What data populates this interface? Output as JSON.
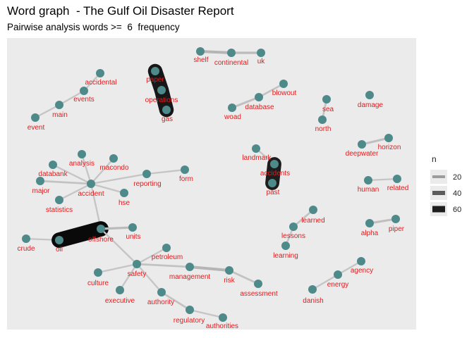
{
  "title": "Word graph  - The Gulf Oil Disaster Report",
  "subtitle": "Pairwise analysis words >=  6  frequency",
  "colors": {
    "panel": "#ebebeb",
    "node": "#4f8a8b",
    "label": "#e41a1c"
  },
  "chart_data": {
    "type": "network",
    "legend": {
      "title": "n",
      "values": [
        "20",
        "40",
        "60"
      ],
      "placement": "right"
    },
    "nodes": [
      "shelf",
      "continental",
      "uk",
      "paper",
      "operations",
      "gas",
      "accidental",
      "events",
      "main",
      "event",
      "blowout",
      "database",
      "woad",
      "sea",
      "north",
      "damage",
      "deepwater",
      "horizon",
      "landmark",
      "accidents",
      "past",
      "analysis",
      "macondo",
      "databank",
      "reporting",
      "form",
      "major",
      "accident",
      "hse",
      "statistics",
      "human",
      "related",
      "learned",
      "lessons",
      "learning",
      "alpha",
      "piper",
      "crude",
      "oil",
      "offshore",
      "units",
      "petroleum",
      "safety",
      "management",
      "risk",
      "assessment",
      "culture",
      "executive",
      "authority",
      "regulatory",
      "authorities",
      "agency",
      "energy",
      "danish"
    ],
    "edges": [
      {
        "from": "shelf",
        "to": "continental",
        "n": 12
      },
      {
        "from": "continental",
        "to": "uk",
        "n": 10
      },
      {
        "from": "paper",
        "to": "operations",
        "n": 62
      },
      {
        "from": "operations",
        "to": "gas",
        "n": 62
      },
      {
        "from": "accidental",
        "to": "events",
        "n": 7
      },
      {
        "from": "events",
        "to": "main",
        "n": 7
      },
      {
        "from": "main",
        "to": "event",
        "n": 7
      },
      {
        "from": "blowout",
        "to": "database",
        "n": 8
      },
      {
        "from": "database",
        "to": "woad",
        "n": 9
      },
      {
        "from": "sea",
        "to": "north",
        "n": 8
      },
      {
        "from": "deepwater",
        "to": "horizon",
        "n": 9
      },
      {
        "from": "landmark",
        "to": "accidents",
        "n": 7
      },
      {
        "from": "accidents",
        "to": "past",
        "n": 60
      },
      {
        "from": "analysis",
        "to": "accident",
        "n": 7
      },
      {
        "from": "macondo",
        "to": "accident",
        "n": 7
      },
      {
        "from": "databank",
        "to": "accident",
        "n": 7
      },
      {
        "from": "reporting",
        "to": "accident",
        "n": 7
      },
      {
        "from": "reporting",
        "to": "form",
        "n": 7
      },
      {
        "from": "major",
        "to": "accident",
        "n": 8
      },
      {
        "from": "accident",
        "to": "hse",
        "n": 7
      },
      {
        "from": "statistics",
        "to": "accident",
        "n": 7
      },
      {
        "from": "accident",
        "to": "offshore",
        "n": 7
      },
      {
        "from": "human",
        "to": "related",
        "n": 7
      },
      {
        "from": "learned",
        "to": "lessons",
        "n": 8
      },
      {
        "from": "lessons",
        "to": "learning",
        "n": 7
      },
      {
        "from": "alpha",
        "to": "piper",
        "n": 9
      },
      {
        "from": "crude",
        "to": "oil",
        "n": 7
      },
      {
        "from": "oil",
        "to": "offshore",
        "n": 66
      },
      {
        "from": "offshore",
        "to": "units",
        "n": 10
      },
      {
        "from": "offshore",
        "to": "safety",
        "n": 7
      },
      {
        "from": "safety",
        "to": "petroleum",
        "n": 7
      },
      {
        "from": "safety",
        "to": "management",
        "n": 8
      },
      {
        "from": "management",
        "to": "risk",
        "n": 12
      },
      {
        "from": "risk",
        "to": "assessment",
        "n": 8
      },
      {
        "from": "safety",
        "to": "culture",
        "n": 7
      },
      {
        "from": "safety",
        "to": "executive",
        "n": 7
      },
      {
        "from": "safety",
        "to": "authority",
        "n": 7
      },
      {
        "from": "authority",
        "to": "regulatory",
        "n": 8
      },
      {
        "from": "regulatory",
        "to": "authorities",
        "n": 7
      },
      {
        "from": "agency",
        "to": "energy",
        "n": 7
      },
      {
        "from": "energy",
        "to": "danish",
        "n": 7
      }
    ]
  }
}
